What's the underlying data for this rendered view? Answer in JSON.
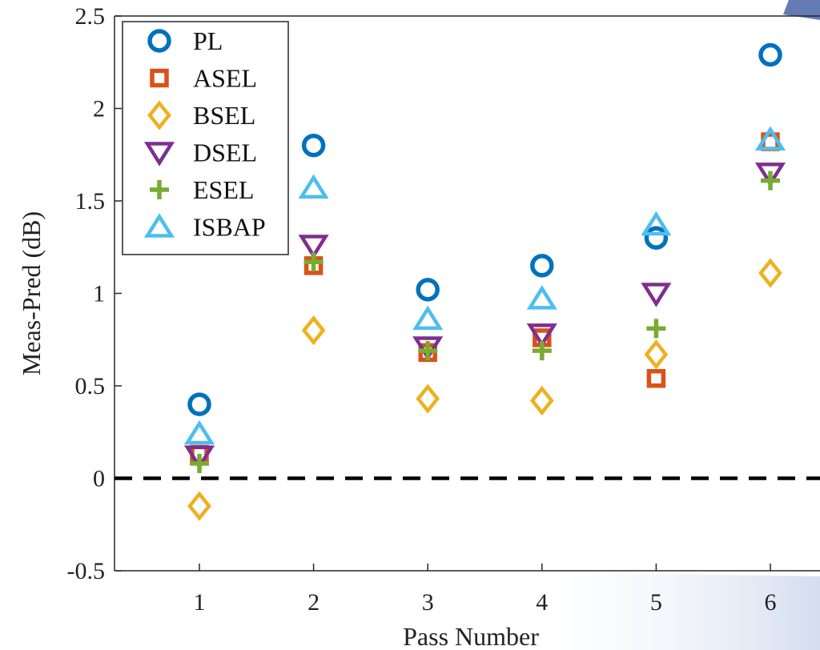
{
  "chart_data": {
    "type": "scatter",
    "title": "",
    "xlabel": "Pass Number",
    "ylabel": "Meas-Pred (dB)",
    "x": [
      1,
      2,
      3,
      4,
      5,
      6
    ],
    "x_ticks": [
      "1",
      "2",
      "3",
      "4",
      "5",
      "6"
    ],
    "y_ticks": [
      "-0.5",
      "0",
      "0.5",
      "1",
      "1.5",
      "2",
      "2.5"
    ],
    "ylim": [
      -0.5,
      2.5
    ],
    "grid": false,
    "legend_position": "top-left",
    "reference_line": {
      "y": 0,
      "style": "dashed",
      "color": "#000000"
    },
    "series": [
      {
        "name": "PL",
        "marker": "circle",
        "color": "#0072BD",
        "values": [
          0.4,
          1.8,
          1.02,
          1.15,
          1.3,
          2.29
        ]
      },
      {
        "name": "ASEL",
        "marker": "square",
        "color": "#D95319",
        "values": [
          0.13,
          1.15,
          0.68,
          0.76,
          0.54,
          1.82
        ]
      },
      {
        "name": "BSEL",
        "marker": "diamond",
        "color": "#EDB120",
        "values": [
          -0.15,
          0.8,
          0.43,
          0.42,
          0.67,
          1.11
        ]
      },
      {
        "name": "DSEL",
        "marker": "triangle-down",
        "color": "#7E2F8E",
        "values": [
          0.12,
          1.26,
          0.71,
          0.78,
          1.0,
          1.65
        ]
      },
      {
        "name": "ESEL",
        "marker": "plus",
        "color": "#77AC30",
        "values": [
          0.08,
          1.17,
          0.69,
          0.69,
          0.81,
          1.61
        ]
      },
      {
        "name": "ISBAP",
        "marker": "triangle-up",
        "color": "#4DBEEE",
        "values": [
          0.24,
          1.57,
          0.86,
          0.97,
          1.37,
          1.83
        ]
      }
    ]
  }
}
